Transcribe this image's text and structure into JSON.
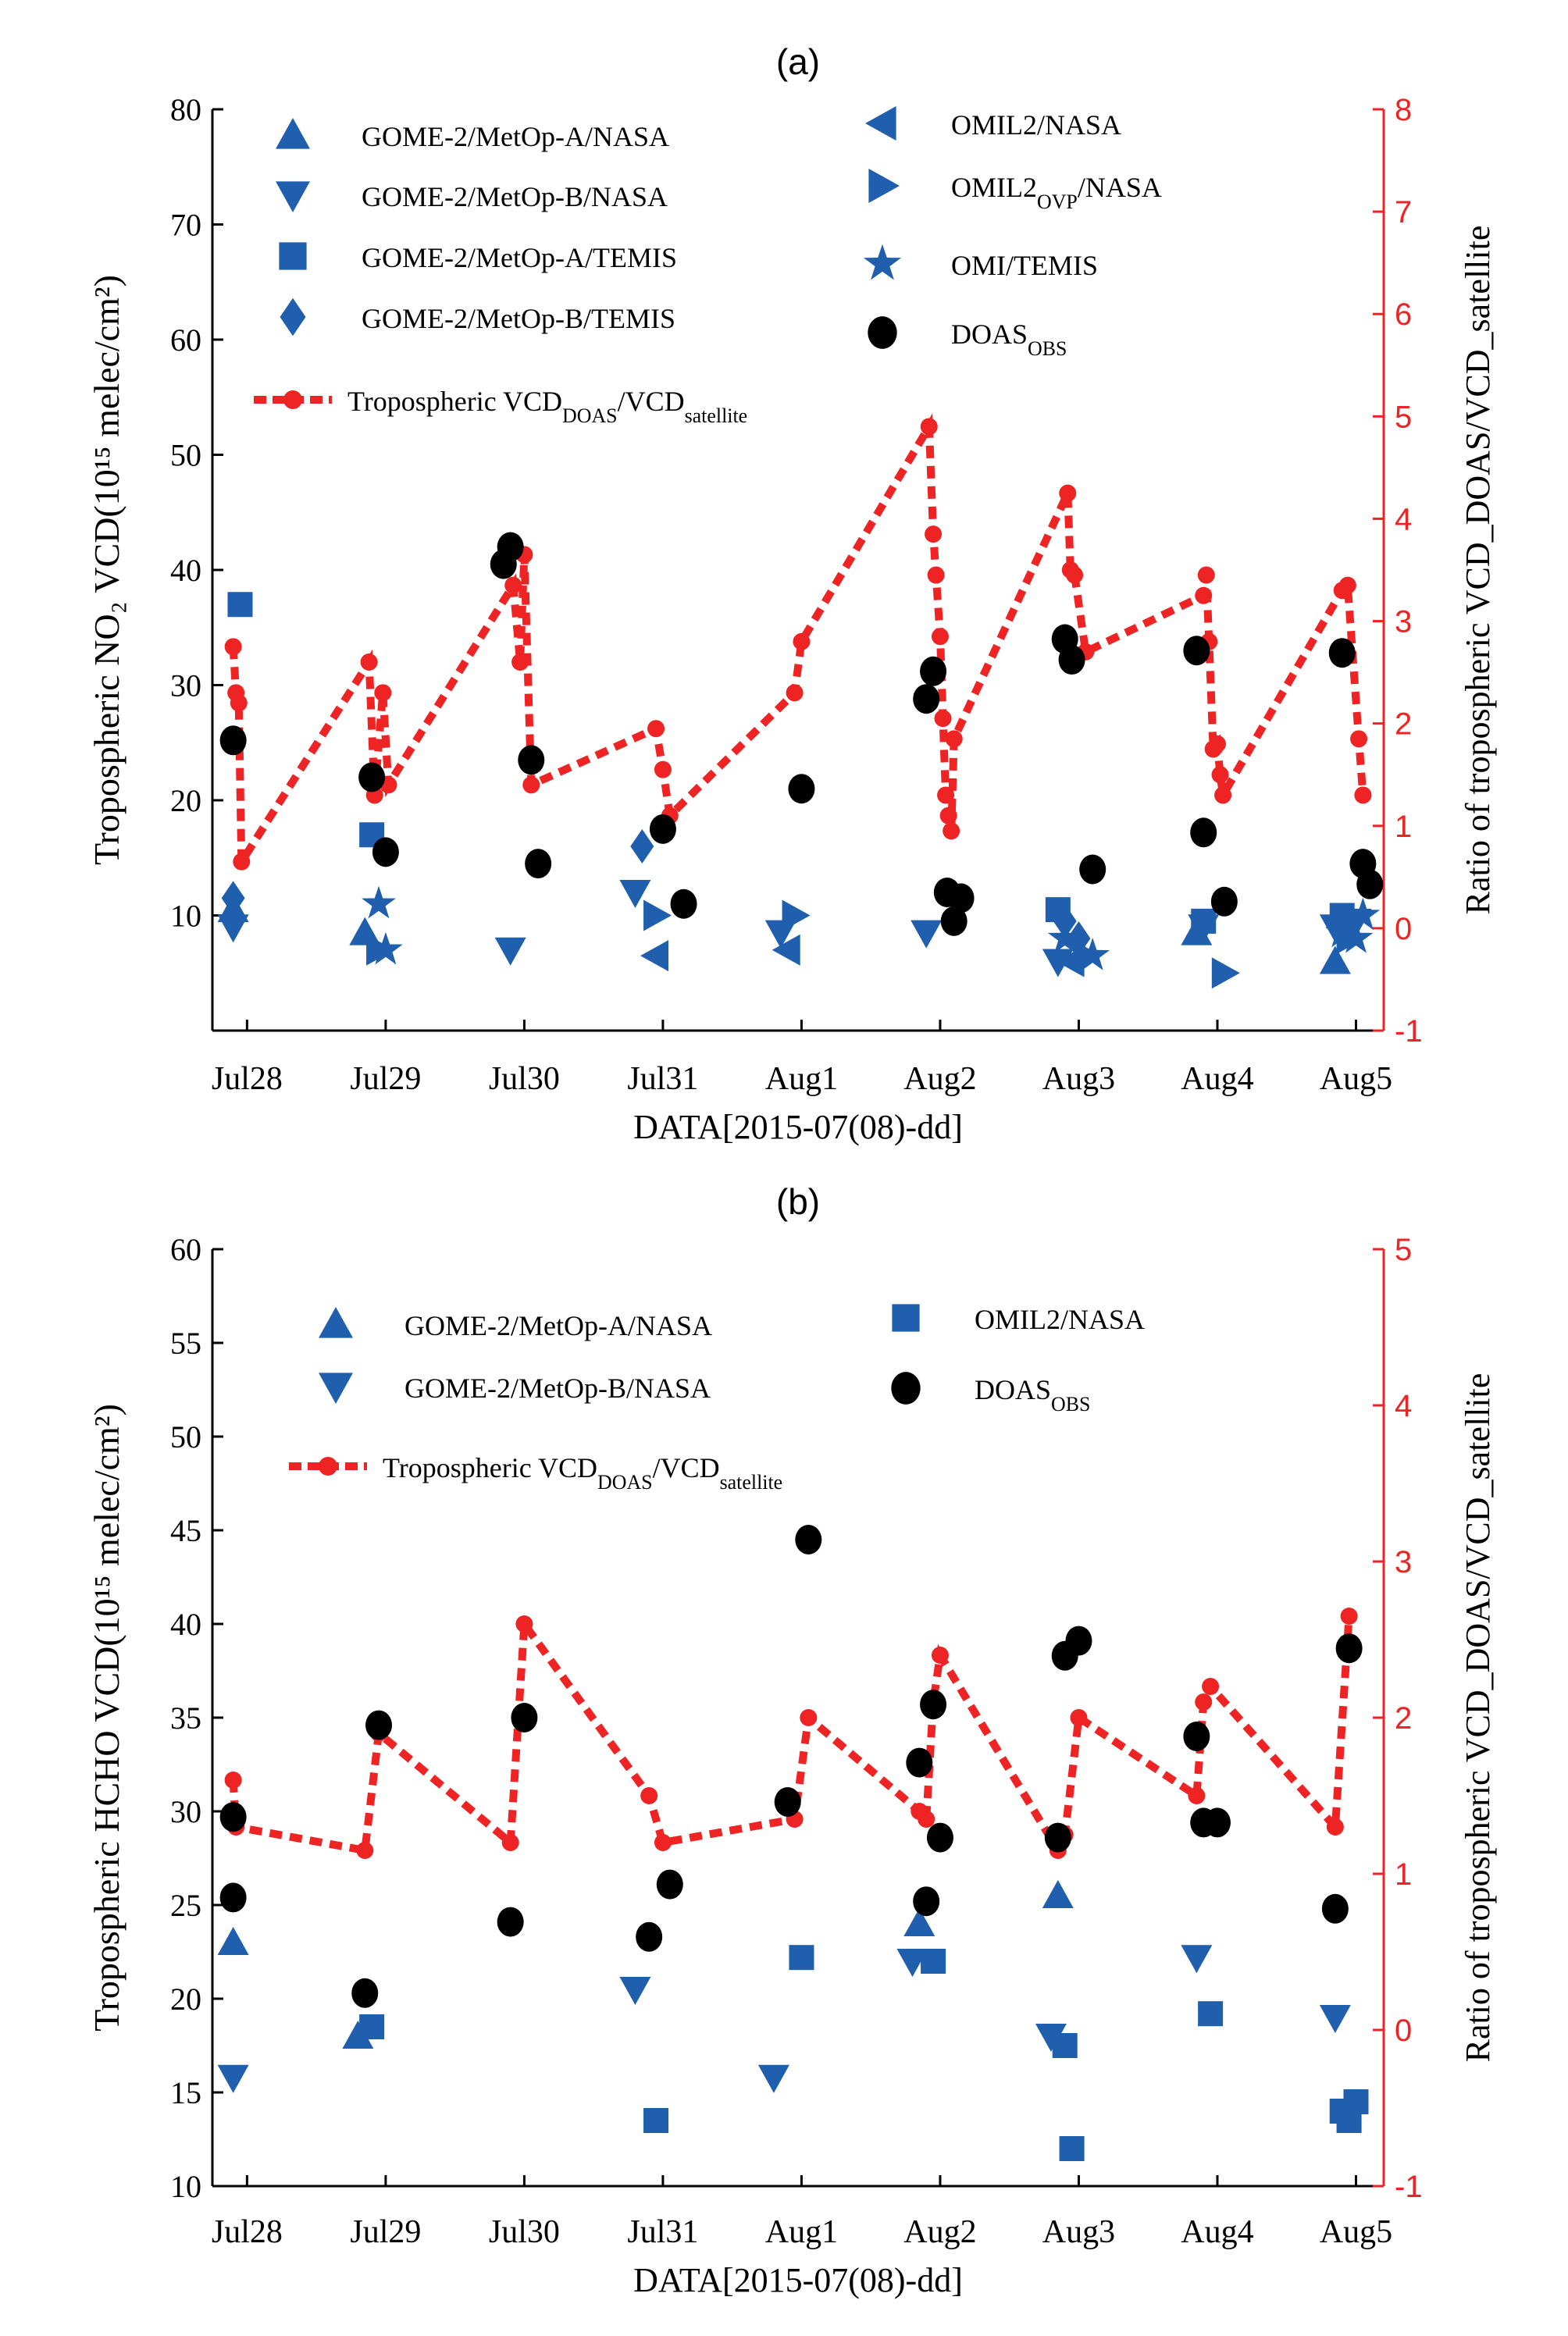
{
  "chart_data": [
    {
      "type": "scatter",
      "panel_label": "(a)",
      "ylabel_left": "Tropospheric NO₂ VCD(10¹⁵ melec/cm²)",
      "ylabel_right": "Ratio of tropospheric VCD_DOAS/VCD_satellite",
      "xlabel": "DATA[2015-07(08)-dd]",
      "ylim_left": [
        0,
        80
      ],
      "ylim_right": [
        -1,
        8
      ],
      "yticks_left": [
        10,
        20,
        30,
        40,
        50,
        60,
        70,
        80
      ],
      "yticks_right": [
        -1,
        0,
        1,
        2,
        3,
        4,
        5,
        6,
        7,
        8
      ],
      "xlim": [
        -0.25,
        8.2
      ],
      "categories": [
        "Jul28",
        "Jul29",
        "Jul30",
        "Jul31",
        "Aug1",
        "Aug2",
        "Aug3",
        "Aug4",
        "Aug5"
      ],
      "legend": [
        {
          "marker": "tri-up",
          "text": "GOME-2/MetOp-A/NASA"
        },
        {
          "marker": "tri-down",
          "text": "GOME-2/MetOp-B/NASA"
        },
        {
          "marker": "square",
          "text": "GOME-2/MetOp-A/TEMIS"
        },
        {
          "marker": "diamond",
          "text": "GOME-2/MetOp-B/TEMIS"
        },
        {
          "marker": "tri-left",
          "text": "OMIL2/NASA"
        },
        {
          "marker": "tri-right",
          "text": "OMIL2",
          "sub": "OVP",
          "after": "/NASA"
        },
        {
          "marker": "star",
          "text": "OMI/TEMIS"
        },
        {
          "marker": "circle-black",
          "text": "DOAS",
          "sub": "OBS",
          "after": ""
        },
        {
          "marker": "ratio-line",
          "text": "Tropospheric VCD",
          "sub": "DOAS",
          "after": "/VCD",
          "sub2": "satellite"
        }
      ],
      "series": [
        {
          "name": "GOME-2/MetOp-A/NASA",
          "marker": "tri-up",
          "points": [
            [
              -0.1,
              10.5
            ],
            [
              0.85,
              8.5
            ],
            [
              6.85,
              8.5
            ],
            [
              7.85,
              6
            ]
          ]
        },
        {
          "name": "GOME-2/MetOp-B/NASA",
          "marker": "tri-down",
          "points": [
            [
              -0.1,
              9
            ],
            [
              1.9,
              7
            ],
            [
              2.8,
              12
            ],
            [
              3.85,
              8.5
            ],
            [
              4.9,
              8.5
            ],
            [
              5.85,
              6
            ],
            [
              6.9,
              9
            ],
            [
              7.85,
              9
            ],
            [
              8.0,
              9.5
            ]
          ]
        },
        {
          "name": "GOME-2/MetOp-A/TEMIS",
          "marker": "square",
          "points": [
            [
              -0.05,
              37
            ],
            [
              0.9,
              17
            ],
            [
              5.85,
              10.5
            ],
            [
              6.9,
              9.5
            ],
            [
              7.9,
              10
            ]
          ]
        },
        {
          "name": "GOME-2/MetOp-B/TEMIS",
          "marker": "diamond",
          "points": [
            [
              -0.1,
              11.5
            ],
            [
              2.85,
              16
            ],
            [
              5.9,
              9.5
            ],
            [
              6.0,
              8
            ]
          ]
        },
        {
          "name": "OMIL2/NASA",
          "marker": "tri-left",
          "points": [
            [
              2.95,
              6.5
            ],
            [
              3.9,
              7
            ],
            [
              5.95,
              6
            ]
          ]
        },
        {
          "name": "OMIL2OVP/NASA",
          "marker": "tri-right",
          "points": [
            [
              0.95,
              7
            ],
            [
              2.95,
              10
            ],
            [
              3.95,
              10
            ],
            [
              6.05,
              6.5
            ],
            [
              7.05,
              5
            ],
            [
              7.95,
              8
            ]
          ]
        },
        {
          "name": "OMI/TEMIS",
          "marker": "star",
          "points": [
            [
              0.95,
              11
            ],
            [
              1.0,
              7
            ],
            [
              5.9,
              8
            ],
            [
              6.1,
              6.5
            ],
            [
              7.9,
              8.5
            ],
            [
              8.0,
              8
            ],
            [
              8.05,
              10
            ]
          ]
        },
        {
          "name": "DOAS_OBS",
          "marker": "circle-black",
          "points": [
            [
              -0.1,
              25.2
            ],
            [
              0.9,
              22
            ],
            [
              1.0,
              15.5
            ],
            [
              1.85,
              40.5
            ],
            [
              1.9,
              42
            ],
            [
              2.05,
              23.5
            ],
            [
              2.1,
              14.5
            ],
            [
              3.0,
              17.5
            ],
            [
              3.15,
              11
            ],
            [
              4.0,
              21
            ],
            [
              4.9,
              28.8
            ],
            [
              4.95,
              31.2
            ],
            [
              5.05,
              12
            ],
            [
              5.1,
              9.5
            ],
            [
              5.15,
              11.5
            ],
            [
              5.9,
              34
            ],
            [
              5.95,
              32.2
            ],
            [
              6.1,
              14
            ],
            [
              6.85,
              33
            ],
            [
              6.9,
              17.2
            ],
            [
              7.05,
              11.2
            ],
            [
              7.9,
              32.8
            ],
            [
              8.05,
              14.5
            ],
            [
              8.1,
              12.7
            ]
          ]
        }
      ],
      "ratio_series": {
        "name": "Tropospheric VCD_DOAS/VCD_satellite",
        "axis": "right",
        "points": [
          [
            -0.1,
            2.75
          ],
          [
            -0.08,
            2.3
          ],
          [
            -0.06,
            2.2
          ],
          [
            -0.04,
            0.65
          ],
          [
            0.88,
            2.6
          ],
          [
            0.92,
            1.3
          ],
          [
            0.98,
            2.3
          ],
          [
            1.02,
            1.4
          ],
          [
            1.92,
            3.35
          ],
          [
            1.97,
            2.6
          ],
          [
            2.0,
            3.65
          ],
          [
            2.05,
            1.4
          ],
          [
            2.95,
            1.95
          ],
          [
            3.0,
            1.55
          ],
          [
            3.05,
            1.1
          ],
          [
            3.95,
            2.3
          ],
          [
            4.0,
            2.8
          ],
          [
            4.92,
            4.9
          ],
          [
            4.95,
            3.85
          ],
          [
            4.97,
            3.45
          ],
          [
            5.0,
            2.85
          ],
          [
            5.02,
            2.05
          ],
          [
            5.04,
            1.3
          ],
          [
            5.06,
            1.1
          ],
          [
            5.08,
            0.95
          ],
          [
            5.1,
            1.85
          ],
          [
            5.92,
            4.25
          ],
          [
            5.94,
            3.5
          ],
          [
            5.97,
            3.45
          ],
          [
            6.05,
            2.7
          ],
          [
            6.9,
            3.25
          ],
          [
            6.92,
            3.45
          ],
          [
            6.94,
            2.8
          ],
          [
            6.97,
            1.75
          ],
          [
            7.0,
            1.8
          ],
          [
            7.02,
            1.5
          ],
          [
            7.04,
            1.3
          ],
          [
            7.9,
            3.3
          ],
          [
            7.94,
            3.35
          ],
          [
            8.02,
            1.85
          ],
          [
            8.05,
            1.3
          ]
        ]
      }
    },
    {
      "type": "scatter",
      "panel_label": "(b)",
      "ylabel_left": "Tropospheric HCHO VCD(10¹⁵ melec/cm²)",
      "ylabel_right": "Ratio of tropospheric VCD_DOAS/VCD_satellite",
      "xlabel": "DATA[2015-07(08)-dd]",
      "ylim_left": [
        10,
        60
      ],
      "ylim_right": [
        -1,
        5
      ],
      "yticks_left": [
        10,
        15,
        20,
        25,
        30,
        35,
        40,
        45,
        50,
        55,
        60
      ],
      "yticks_right": [
        -1,
        0,
        1,
        2,
        3,
        4,
        5
      ],
      "xlim": [
        -0.25,
        8.2
      ],
      "categories": [
        "Jul28",
        "Jul29",
        "Jul30",
        "Jul31",
        "Aug1",
        "Aug2",
        "Aug3",
        "Aug4",
        "Aug5"
      ],
      "legend": [
        {
          "marker": "tri-up",
          "text": "GOME-2/MetOp-A/NASA"
        },
        {
          "marker": "tri-down",
          "text": "GOME-2/MetOp-B/NASA"
        },
        {
          "marker": "square",
          "text": "OMIL2/NASA"
        },
        {
          "marker": "circle-black",
          "text": "DOAS",
          "sub": "OBS",
          "after": ""
        },
        {
          "marker": "ratio-line",
          "text": "Tropospheric VCD",
          "sub": "DOAS",
          "after": "/VCD",
          "sub2": "satellite"
        }
      ],
      "series": [
        {
          "name": "GOME-2/MetOp-A/NASA",
          "marker": "tri-up",
          "points": [
            [
              -0.1,
              23
            ],
            [
              0.8,
              18
            ],
            [
              4.85,
              24
            ],
            [
              5.85,
              25.5
            ]
          ]
        },
        {
          "name": "GOME-2/MetOp-B/NASA",
          "marker": "tri-down",
          "points": [
            [
              -0.1,
              15.8
            ],
            [
              2.8,
              20.5
            ],
            [
              3.8,
              15.8
            ],
            [
              4.8,
              22
            ],
            [
              5.8,
              18
            ],
            [
              6.85,
              22.2
            ],
            [
              7.85,
              19
            ]
          ]
        },
        {
          "name": "OMIL2/NASA",
          "marker": "square",
          "points": [
            [
              0.9,
              18.5
            ],
            [
              2.95,
              13.5
            ],
            [
              4.0,
              22.2
            ],
            [
              4.95,
              22
            ],
            [
              5.9,
              17.5
            ],
            [
              5.95,
              12
            ],
            [
              6.95,
              19.2
            ],
            [
              7.9,
              14
            ],
            [
              7.95,
              13.5
            ],
            [
              8.0,
              14.5
            ]
          ]
        },
        {
          "name": "DOAS_OBS",
          "marker": "circle-black",
          "points": [
            [
              -0.1,
              29.7
            ],
            [
              -0.1,
              25.4
            ],
            [
              0.85,
              20.3
            ],
            [
              0.95,
              34.6
            ],
            [
              1.9,
              24.1
            ],
            [
              2.0,
              35
            ],
            [
              2.9,
              23.3
            ],
            [
              3.05,
              26.1
            ],
            [
              3.9,
              30.5
            ],
            [
              4.05,
              44.5
            ],
            [
              4.85,
              32.6
            ],
            [
              4.9,
              25.2
            ],
            [
              4.95,
              35.7
            ],
            [
              5.0,
              28.6
            ],
            [
              5.85,
              28.6
            ],
            [
              5.9,
              38.3
            ],
            [
              6.0,
              39.1
            ],
            [
              6.85,
              34
            ],
            [
              6.9,
              29.4
            ],
            [
              7.0,
              29.4
            ],
            [
              7.85,
              24.8
            ],
            [
              7.95,
              38.7
            ]
          ]
        }
      ],
      "ratio_series": {
        "name": "Tropospheric VCD_DOAS/VCD_satellite",
        "axis": "right",
        "points": [
          [
            -0.1,
            1.6
          ],
          [
            -0.08,
            1.3
          ],
          [
            0.85,
            1.15
          ],
          [
            0.95,
            1.9
          ],
          [
            1.9,
            1.2
          ],
          [
            2.0,
            2.6
          ],
          [
            2.9,
            1.5
          ],
          [
            3.0,
            1.2
          ],
          [
            3.95,
            1.35
          ],
          [
            4.05,
            2.0
          ],
          [
            4.85,
            1.4
          ],
          [
            4.9,
            1.35
          ],
          [
            4.95,
            2.1
          ],
          [
            5.0,
            2.4
          ],
          [
            5.85,
            1.15
          ],
          [
            5.9,
            1.25
          ],
          [
            6.0,
            2.0
          ],
          [
            6.85,
            1.5
          ],
          [
            6.9,
            2.1
          ],
          [
            6.95,
            2.2
          ],
          [
            7.85,
            1.3
          ],
          [
            7.95,
            2.65
          ]
        ]
      }
    }
  ]
}
